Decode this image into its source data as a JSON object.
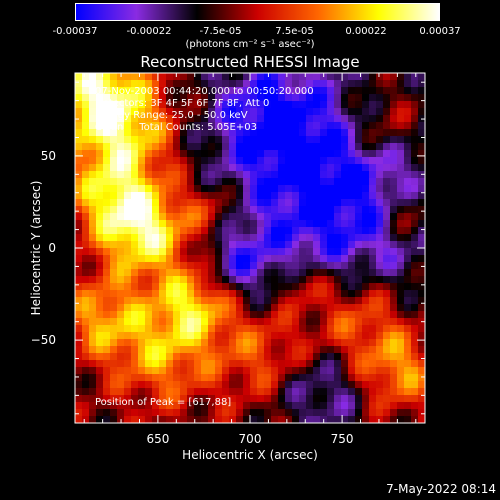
{
  "chart_data": {
    "type": "heatmap",
    "title": "Reconstructed RHESSI Image",
    "colorbar": {
      "tick_labels": [
        "-0.00037",
        "-0.00022",
        "-7.5e-05",
        "7.5e-05",
        "0.00022",
        "0.00037"
      ],
      "tick_values": [
        -0.00037,
        -0.00022,
        -7.5e-05,
        7.5e-05,
        0.00022,
        0.00037
      ],
      "range": [
        -0.00037,
        0.00037
      ],
      "unit_label": "(photons cm⁻² s⁻¹ asec⁻²)",
      "colormap": [
        "#0000ff",
        "#8a2be2",
        "#000000",
        "#cc0000",
        "#ff6600",
        "#ffff00",
        "#ffffff"
      ]
    },
    "info_lines": [
      "07-Nov-2003 00:44:20.000 to 00:50:20.000",
      "Detectors: 3F 4F 5F 6F 7F 8F, Att 0",
      "Energy Range: 25.0 - 50.0 keV",
      "Clean     Total Counts: 5.05E+03"
    ],
    "peak_label": "Position of Peak = [617,88]",
    "xlabel": "Heliocentric X (arcsec)",
    "ylabel": "Heliocentric Y (arcsec)",
    "xlim": [
      605,
      795
    ],
    "ylim": [
      -95,
      95
    ],
    "xticks": [
      650,
      700,
      750
    ],
    "xtick_labels": [
      "650",
      "700",
      "750"
    ],
    "yticks": [
      -50,
      0,
      50
    ],
    "ytick_labels": [
      "−50",
      "0",
      "50"
    ],
    "grid": false
  },
  "footer": {
    "timestamp": "7-May-2022 08:14"
  }
}
